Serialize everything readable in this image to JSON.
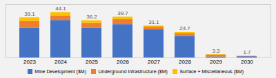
{
  "chart_data": {
    "type": "bar",
    "stacked": true,
    "categories": [
      "2023",
      "2024",
      "2025",
      "2026",
      "2027",
      "2028",
      "2029",
      "2030"
    ],
    "series": [
      {
        "name": "Mine Development ($M)",
        "color": "#4472C4",
        "values": [
          29.0,
          36.5,
          29.0,
          32.5,
          27.5,
          21.0,
          1.0,
          1.2
        ]
      },
      {
        "name": "Underground Infrastructure ($M)",
        "color": "#ED7D31",
        "values": [
          6.5,
          4.5,
          4.5,
          4.8,
          2.5,
          2.8,
          1.8,
          0.3
        ]
      },
      {
        "name": "Surface + Miscellaneous ($M)",
        "color": "#FFC000",
        "values": [
          3.6,
          3.1,
          2.7,
          2.4,
          1.1,
          0.9,
          0.5,
          0.2
        ]
      }
    ],
    "totals": [
      39.1,
      44.1,
      36.2,
      39.7,
      31.1,
      24.7,
      3.3,
      1.7
    ],
    "ylim": [
      0,
      52
    ],
    "tick_labels": "x",
    "legend": "bottom"
  }
}
